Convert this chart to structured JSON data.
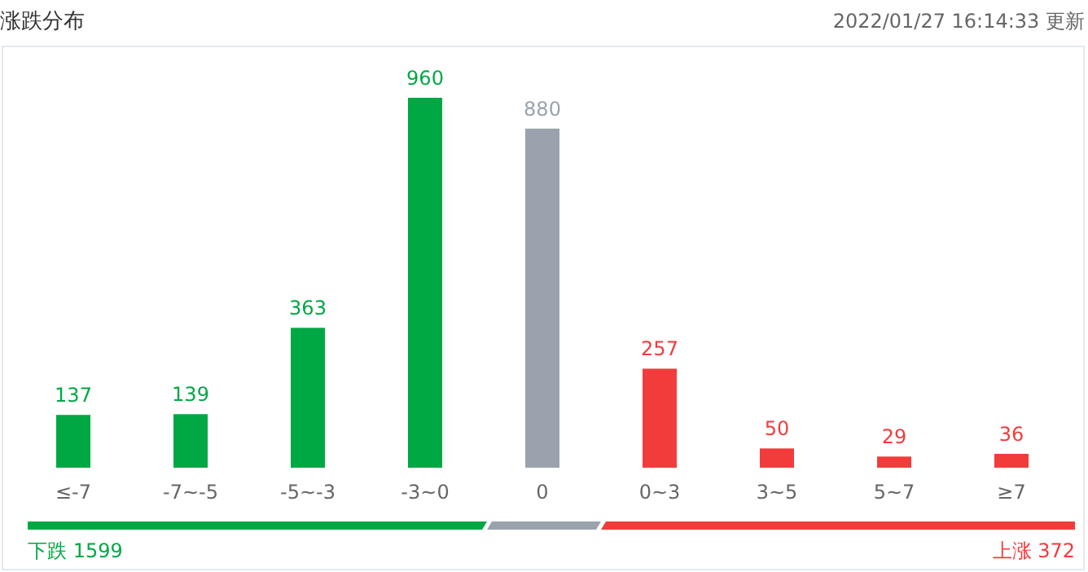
{
  "chart_data": {
    "type": "bar",
    "title": "涨跌分布",
    "subtitle": "2022/01/27 16:14:33  更新",
    "categories": [
      "≤-7",
      "-7~-5",
      "-5~-3",
      "-3~0",
      "0",
      "0~3",
      "3~5",
      "5~7",
      "≥7"
    ],
    "values": [
      137,
      139,
      363,
      960,
      880,
      257,
      50,
      29,
      36
    ],
    "colors": [
      "#00a844",
      "#00a844",
      "#00a844",
      "#00a844",
      "#9aa3ad",
      "#f23c3c",
      "#f23c3c",
      "#f23c3c",
      "#f23c3c"
    ],
    "data_labels": true,
    "annotations": [
      "下跌 1599",
      "上涨 372"
    ]
  }
}
